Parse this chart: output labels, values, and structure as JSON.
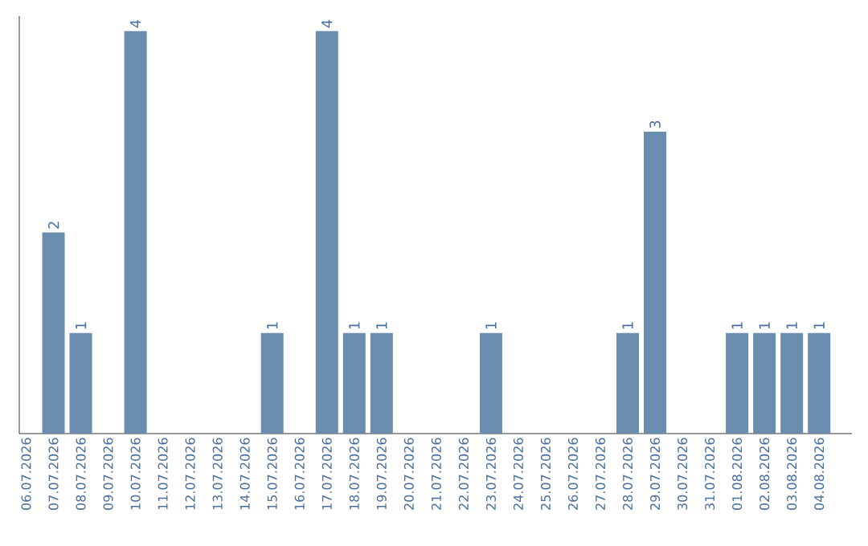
{
  "chart_data": {
    "type": "bar",
    "categories": [
      "06.07.2026",
      "07.07.2026",
      "08.07.2026",
      "09.07.2026",
      "10.07.2026",
      "11.07.2026",
      "12.07.2026",
      "13.07.2026",
      "14.07.2026",
      "15.07.2026",
      "16.07.2026",
      "17.07.2026",
      "18.07.2026",
      "19.07.2026",
      "20.07.2026",
      "21.07.2026",
      "22.07.2026",
      "23.07.2026",
      "24.07.2026",
      "25.07.2026",
      "26.07.2026",
      "27.07.2026",
      "28.07.2026",
      "29.07.2026",
      "30.07.2026",
      "31.07.2026",
      "01.08.2026",
      "02.08.2026",
      "03.08.2026",
      "04.08.2026"
    ],
    "values": [
      0,
      2,
      1,
      0,
      4,
      0,
      0,
      0,
      0,
      1,
      0,
      4,
      1,
      1,
      0,
      0,
      0,
      1,
      0,
      0,
      0,
      0,
      1,
      3,
      0,
      0,
      1,
      1,
      1,
      1
    ],
    "value_labels": [
      null,
      "2",
      "1",
      null,
      "4",
      null,
      null,
      null,
      null,
      "1",
      null,
      "4",
      "1",
      "1",
      null,
      null,
      null,
      "1",
      null,
      null,
      null,
      null,
      "1",
      "3",
      null,
      null,
      "1",
      "1",
      "1",
      "1"
    ],
    "color": "#6a8caf",
    "ylim": [
      0,
      4.15
    ],
    "tick_labels": "x"
  }
}
